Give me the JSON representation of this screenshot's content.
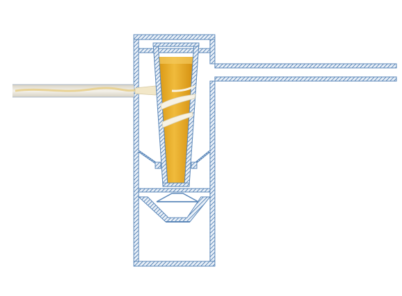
{
  "colors": {
    "background": "#ffffff",
    "wall_stroke": "#5b87b9",
    "wall_hatch": "#3d6fa8",
    "wall_fill": "#e9f0f8",
    "fluid_light": "#f4d37a",
    "fluid_mid": "#e9ad2a",
    "fluid_dark": "#d08c10",
    "inlet_pipe_fill": "#eae7dd",
    "inlet_stream": "#ecd59a",
    "swirl_band": "#f7f2e4"
  }
}
